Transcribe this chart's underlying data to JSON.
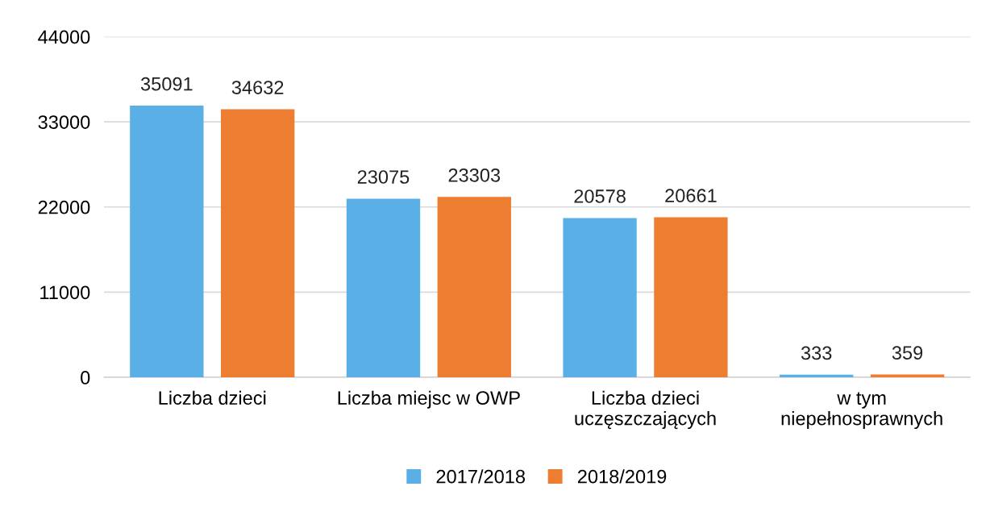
{
  "chart_data": {
    "type": "bar",
    "categories": [
      "Liczba dzieci",
      "Liczba miejsc w OWP",
      "Liczba dzieci\nuczęszczających",
      "w tym\nniepełnosprawnych"
    ],
    "series": [
      {
        "name": "2017/2018",
        "color": "#5aafe6",
        "values": [
          35091,
          23075,
          20578,
          333
        ]
      },
      {
        "name": "2018/2019",
        "color": "#ed7d31",
        "values": [
          34632,
          23303,
          20661,
          359
        ]
      }
    ],
    "ylim": [
      0,
      44000
    ],
    "yticks": [
      0,
      11000,
      22000,
      33000,
      44000
    ],
    "grid": "y",
    "legend": "bottom",
    "data_labels": true
  }
}
